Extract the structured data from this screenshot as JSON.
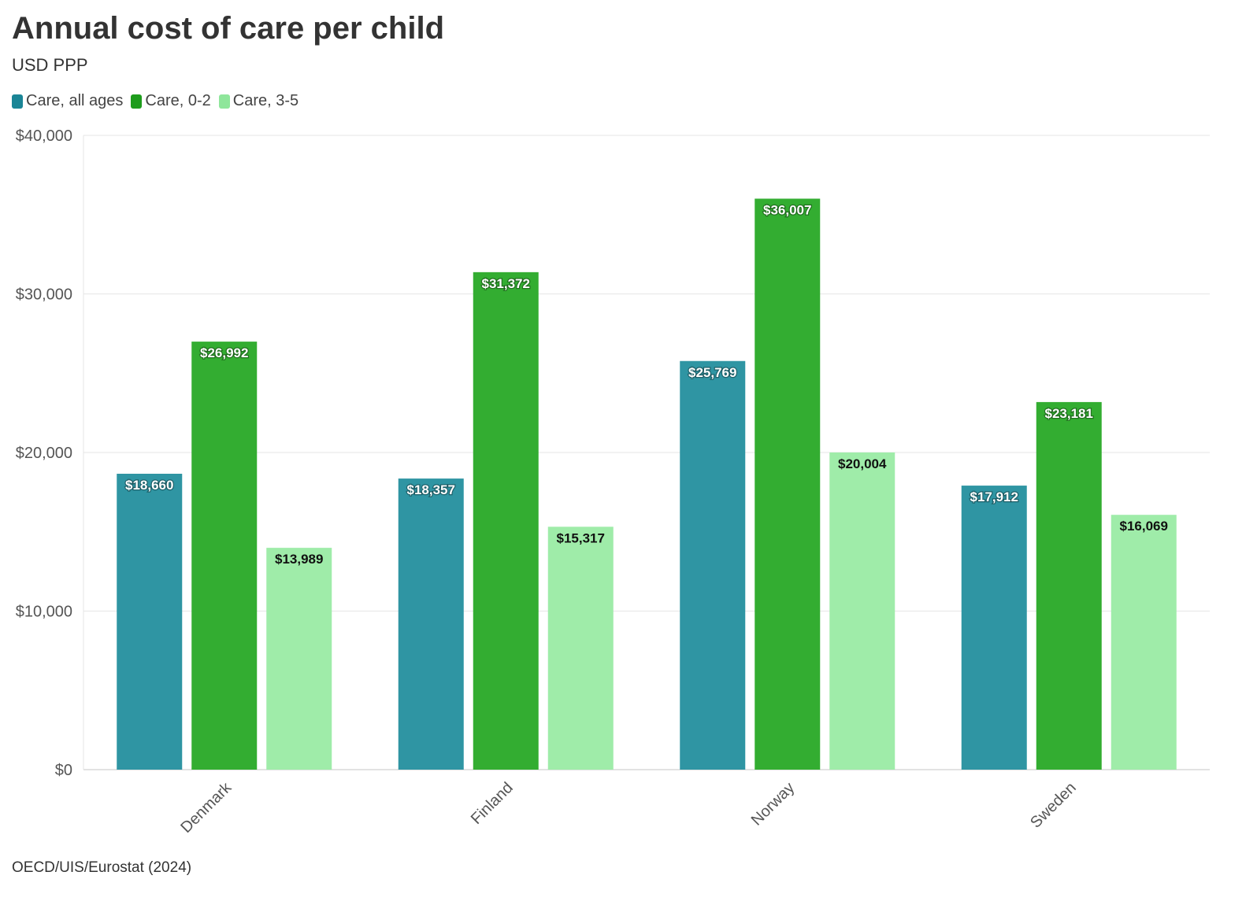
{
  "title": "Annual cost of care per child",
  "subtitle": "USD PPP",
  "source": "OECD/UIS/Eurostat (2024)",
  "chart_data": {
    "type": "bar",
    "categories": [
      "Denmark",
      "Finland",
      "Norway",
      "Sweden"
    ],
    "series": [
      {
        "name": "Care, all ages",
        "color": "#2f95a3",
        "legend_color": "#1a8596",
        "label_color": "#ffffff",
        "values": [
          18660,
          18357,
          25769,
          17912
        ],
        "labels": [
          "$18,660",
          "$18,357",
          "$25,769",
          "$17,912"
        ]
      },
      {
        "name": "Care, 0-2",
        "color": "#33ad31",
        "legend_color": "#1e9c1c",
        "label_color": "#ffffff",
        "values": [
          26992,
          31372,
          36007,
          23181
        ],
        "labels": [
          "$26,992",
          "$31,372",
          "$36,007",
          "$23,181"
        ]
      },
      {
        "name": "Care, 3-5",
        "color": "#9feca9",
        "legend_color": "#8fe69b",
        "label_color": "#111111",
        "values": [
          13989,
          15317,
          20004,
          16069
        ],
        "labels": [
          "$13,989",
          "$15,317",
          "$20,004",
          "$16,069"
        ]
      }
    ],
    "ylim": [
      0,
      40000
    ],
    "yticks": [
      0,
      10000,
      20000,
      30000,
      40000
    ],
    "ytick_labels": [
      "$0",
      "$10,000",
      "$20,000",
      "$30,000",
      "$40,000"
    ],
    "grid": true,
    "legend_position": "top-left"
  }
}
